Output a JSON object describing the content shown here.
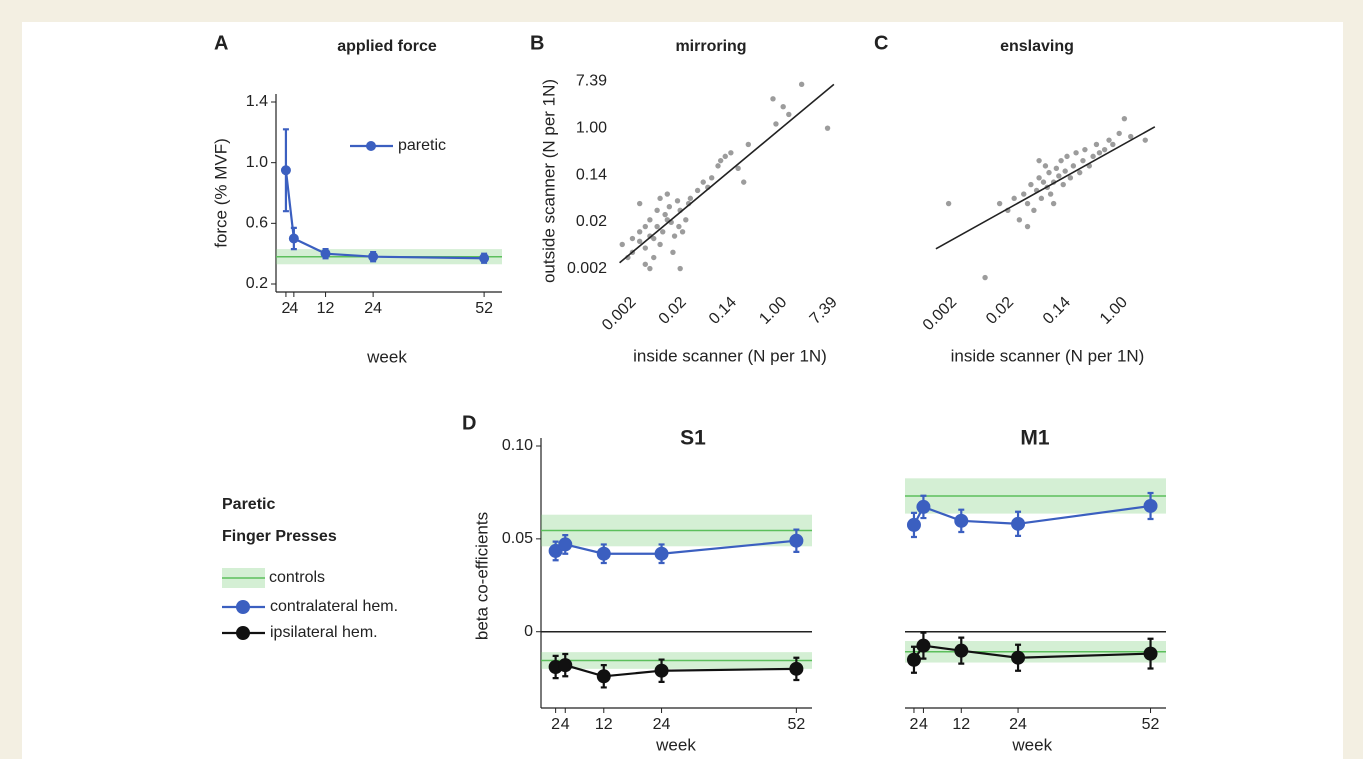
{
  "chart_data": [
    {
      "panel": "A",
      "type": "line",
      "title": "applied force",
      "xlabel": "week",
      "ylabel": "force (% MVF)",
      "x": [
        2,
        4,
        12,
        24,
        52
      ],
      "xlim": [
        0,
        55
      ],
      "xticks": [
        2,
        4,
        12,
        24,
        52
      ],
      "ylim": [
        0.2,
        1.4
      ],
      "yticks": [
        0.2,
        0.6,
        {
          "value": 1,
          "label": "1.0"
        },
        1.4
      ],
      "axes": [
        "left",
        "bottom"
      ],
      "legend": "upper right",
      "control_color": "#5cbf5c",
      "series": [
        {
          "name": "paretic",
          "color": "#3b5fc0",
          "values": [
            0.95,
            0.5,
            0.4,
            0.38,
            0.37
          ],
          "errors": [
            0.27,
            0.07,
            0.03,
            0.03,
            0.03
          ],
          "control": 0.38,
          "control_error": 0.05
        }
      ]
    },
    {
      "panel": "B",
      "type": "scatter",
      "title": "mirroring",
      "xlabel": "inside scanner (N per 1N)",
      "ylabel": "outside scanner (N per 1N)",
      "xscale": "log",
      "yscale": "log",
      "xlim": [
        0.0015,
        14
      ],
      "ylim": [
        0.001,
        11
      ],
      "xticks": [
        {
          "value": 0.00248,
          "label": "0.002"
        },
        {
          "value": 0.0183,
          "label": "0.02"
        },
        {
          "value": 0.135,
          "label": "0.14"
        },
        {
          "value": 1,
          "label": "1.00"
        },
        {
          "value": 7.39,
          "label": "7.39"
        }
      ],
      "yticks": [
        {
          "value": 0.00248,
          "label": "0.002"
        },
        {
          "value": 0.0183,
          "label": "0.02"
        },
        {
          "value": 0.135,
          "label": "0.14"
        },
        {
          "value": 1,
          "label": "1.00"
        },
        {
          "value": 7.39,
          "label": "7.39"
        }
      ],
      "series": [
        {
          "color": "#9c9c9c",
          "x": [
            0.003,
            0.004,
            0.005,
            0.006,
            0.004,
            0.007,
            0.008,
            0.009,
            0.01,
            0.012,
            0.005,
            0.003,
            0.006,
            0.008,
            0.011,
            0.014,
            0.016,
            0.02,
            0.025,
            0.007,
            0.009,
            0.012,
            0.004,
            0.018,
            0.03,
            0.022,
            0.015,
            0.006,
            0.002,
            0.0025,
            0.013,
            0.019,
            0.028,
            0.04,
            0.05,
            0.07,
            0.1,
            0.12,
            0.15,
            0.09,
            0.06,
            0.2,
            0.25,
            0.3,
            0.8,
            1.2,
            0.9,
            1.5,
            2.5,
            7,
            0.02,
            0.005
          ],
          "values": [
            0.005,
            0.008,
            0.006,
            0.01,
            0.012,
            0.009,
            0.015,
            0.007,
            0.012,
            0.02,
            0.015,
            0.009,
            0.02,
            0.03,
            0.025,
            0.018,
            0.01,
            0.03,
            0.02,
            0.004,
            0.05,
            0.06,
            0.04,
            0.045,
            0.05,
            0.012,
            0.005,
            0.0025,
            0.007,
            0.004,
            0.035,
            0.015,
            0.04,
            0.07,
            0.1,
            0.12,
            0.25,
            0.3,
            0.35,
            0.2,
            0.08,
            0.18,
            0.1,
            0.5,
            3.5,
            2.5,
            1.2,
            1.8,
            6.5,
            1.0,
            0.0025,
            0.003
          ]
        },
        {
          "type": "line",
          "color": "#222222",
          "x": [
            0.0018,
            9
          ],
          "values": [
            0.0032,
            6.5
          ]
        }
      ]
    },
    {
      "panel": "C",
      "type": "scatter",
      "title": "enslaving",
      "xlabel": "inside scanner (N per 1N)",
      "xscale": "log",
      "yscale": "log",
      "xlim": [
        0.0013,
        5
      ],
      "ylim": [
        0.001,
        11
      ],
      "xticks": [
        {
          "value": 0.00248,
          "label": "0.002"
        },
        {
          "value": 0.0183,
          "label": "0.02"
        },
        {
          "value": 0.135,
          "label": "0.14"
        },
        {
          "value": 1,
          "label": "1.00"
        }
      ],
      "series": [
        {
          "color": "#9c9c9c",
          "x": [
            0.0025,
            0.009,
            0.02,
            0.025,
            0.03,
            0.035,
            0.04,
            0.045,
            0.05,
            0.055,
            0.06,
            0.065,
            0.07,
            0.075,
            0.08,
            0.085,
            0.09,
            0.1,
            0.11,
            0.12,
            0.13,
            0.14,
            0.15,
            0.16,
            0.18,
            0.2,
            0.22,
            0.25,
            0.28,
            0.3,
            0.35,
            0.4,
            0.45,
            0.5,
            0.6,
            0.7,
            0.8,
            1.0,
            1.2,
            1.5,
            0.06,
            0.1,
            0.04,
            0.015,
            2.5
          ],
          "values": [
            0.04,
            0.0017,
            0.03,
            0.05,
            0.02,
            0.06,
            0.04,
            0.09,
            0.03,
            0.07,
            0.12,
            0.05,
            0.1,
            0.2,
            0.08,
            0.15,
            0.06,
            0.1,
            0.18,
            0.13,
            0.25,
            0.09,
            0.16,
            0.3,
            0.12,
            0.2,
            0.35,
            0.15,
            0.25,
            0.4,
            0.2,
            0.3,
            0.5,
            0.35,
            0.4,
            0.6,
            0.5,
            0.8,
            1.5,
            0.7,
            0.25,
            0.04,
            0.015,
            0.04,
            0.6
          ]
        },
        {
          "type": "line",
          "color": "#222222",
          "x": [
            0.0016,
            3.5
          ],
          "values": [
            0.0058,
            1.06
          ]
        }
      ]
    },
    {
      "panel": "D",
      "type": "line",
      "title": "S1",
      "xlabel": "week",
      "ylabel": "beta co-efficients",
      "x": [
        2,
        4,
        12,
        24,
        52
      ],
      "xlim": [
        0,
        54
      ],
      "xticks": [
        2,
        4,
        12,
        24,
        52
      ],
      "ylim": [
        -0.04,
        0.1
      ],
      "yticks": [
        0,
        0.05,
        {
          "value": 0.1,
          "label": "0.10"
        }
      ],
      "axes": [
        "left",
        "bottom"
      ],
      "zero_line": true,
      "legend": "left outside",
      "legend_title": [
        "Paretic",
        "Finger Presses"
      ],
      "control_name": "controls",
      "control_color": "#5cbf5c",
      "series": [
        {
          "name": "contralateral hem.",
          "color": "#3b5fc0",
          "values": [
            0.0435,
            0.047,
            0.042,
            0.042,
            0.049
          ],
          "errors": [
            0.005,
            0.005,
            0.005,
            0.005,
            0.006
          ],
          "control": 0.0545,
          "control_error": 0.0085
        },
        {
          "name": "ipsilateral hem.",
          "color": "#111111",
          "values": [
            -0.019,
            -0.018,
            -0.024,
            -0.021,
            -0.02
          ],
          "errors": [
            0.006,
            0.006,
            0.006,
            0.006,
            0.006
          ],
          "control": -0.0155,
          "control_error": 0.0045
        }
      ]
    },
    {
      "type": "line",
      "title": "M1",
      "xlabel": "week",
      "x": [
        2,
        4,
        12,
        24,
        52
      ],
      "xlim": [
        0,
        54
      ],
      "xticks": [
        2,
        4,
        12,
        24,
        52
      ],
      "ylim": [
        -0.04,
        0.1
      ],
      "axes": [
        "bottom"
      ],
      "zero_line": true,
      "control_color": "#5cbf5c",
      "series": [
        {
          "color": "#3b5fc0",
          "values": [
            0.0575,
            0.0672,
            0.0597,
            0.0581,
            0.0677
          ],
          "errors": [
            0.0065,
            0.006,
            0.006,
            0.0065,
            0.007
          ],
          "control": 0.0731,
          "control_error": 0.0095
        },
        {
          "color": "#111111",
          "values": [
            -0.0151,
            -0.0075,
            -0.0102,
            -0.014,
            -0.0118
          ],
          "errors": [
            0.007,
            0.007,
            0.007,
            0.007,
            0.008
          ],
          "control": -0.0108,
          "control_error": 0.0058
        }
      ]
    }
  ]
}
